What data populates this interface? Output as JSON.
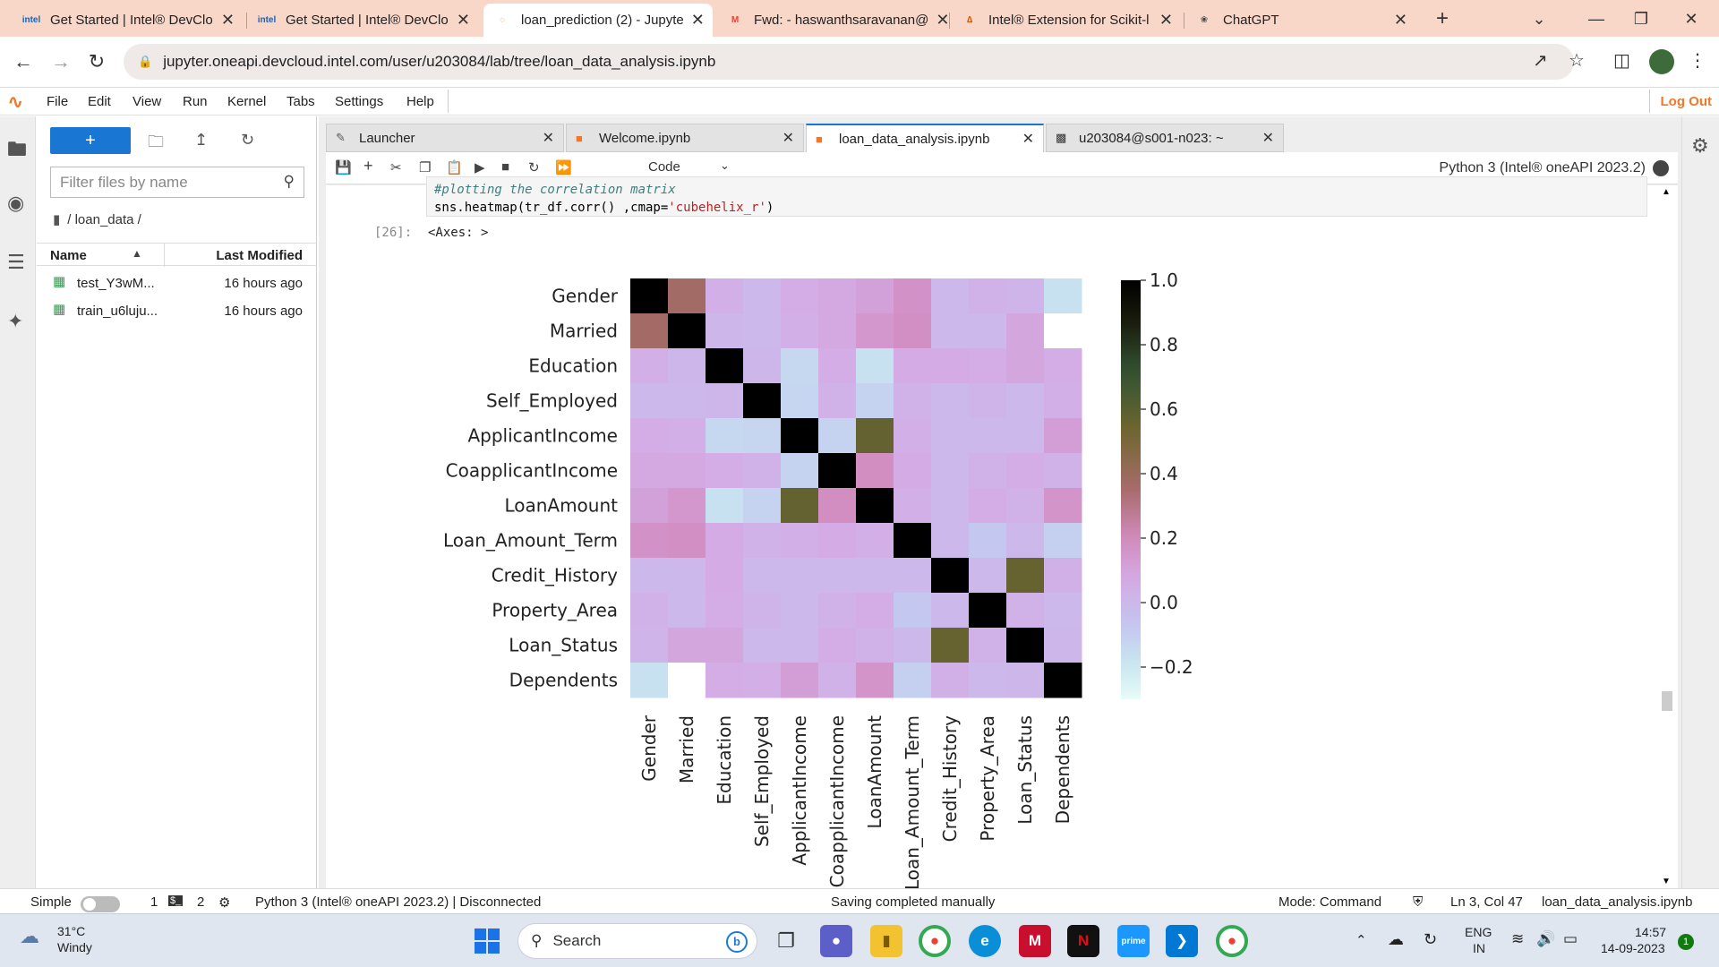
{
  "browser": {
    "tabs": [
      {
        "favicon": "intel",
        "title": "Get Started | Intel® DevClo",
        "active": false
      },
      {
        "favicon": "intel",
        "title": "Get Started | Intel® DevClo",
        "active": false
      },
      {
        "favicon": "jupyter-icon",
        "title": "loan_prediction (2) - Jupyte",
        "active": true
      },
      {
        "favicon": "gmail-icon",
        "title": "Fwd: - haswanthsaravanan@",
        "active": false
      },
      {
        "favicon": "scikit-icon",
        "title": "Intel® Extension for Scikit-l",
        "active": false
      },
      {
        "favicon": "chatgpt-icon",
        "title": "ChatGPT",
        "active": false
      }
    ],
    "new_tab": "+",
    "url": "jupyter.oneapi.devcloud.intel.com/user/u203084/lab/tree/loan_data_analysis.ipynb"
  },
  "jupyter": {
    "menu": [
      "File",
      "Edit",
      "View",
      "Run",
      "Kernel",
      "Tabs",
      "Settings",
      "Help"
    ],
    "logout": "Log Out",
    "filebrowser": {
      "new_label": "+",
      "filter_placeholder": "Filter files by name",
      "breadcrumb": "/ loan_data /",
      "col_name": "Name",
      "col_modified": "Last Modified",
      "files": [
        {
          "name": "test_Y3wM...",
          "modified": "16 hours ago"
        },
        {
          "name": "train_u6luju...",
          "modified": "16 hours ago"
        }
      ]
    },
    "doc_tabs": [
      {
        "title": "Launcher",
        "active": false
      },
      {
        "title": "Welcome.ipynb",
        "active": false
      },
      {
        "title": "loan_data_analysis.ipynb",
        "active": true
      },
      {
        "title": "u203084@s001-n023: ~",
        "active": false
      }
    ],
    "toolbar": {
      "cell_type": "Code",
      "kernel": "Python 3 (Intel® oneAPI 2023.2)"
    },
    "cell": {
      "comment": "#plotting the correlation matrix",
      "code_pre": "sns.heatmap(tr_df.corr() ,cmap=",
      "code_str": "'cubehelix_r'",
      "code_post": ")",
      "out_prompt": "[26]:",
      "out_text": "<Axes: >"
    },
    "status": {
      "mode_label": "Simple",
      "n1": "1",
      "n2": "2",
      "kernel": "Python 3 (Intel® oneAPI 2023.2) | Disconnected",
      "saving": "Saving completed manually",
      "mode": "Mode: Command",
      "position": "Ln 3, Col 47",
      "file": "loan_data_analysis.ipynb"
    }
  },
  "chart_data": {
    "type": "heatmap",
    "colormap": "cubehelix_r",
    "labels": [
      "Gender",
      "Married",
      "Education",
      "Self_Employed",
      "ApplicantIncome",
      "CoapplicantIncome",
      "LoanAmount",
      "Loan_Amount_Term",
      "Credit_History",
      "Property_Area",
      "Loan_Status",
      "Dependents"
    ],
    "matrix": [
      [
        1.0,
        0.37,
        0.05,
        0.0,
        0.06,
        0.08,
        0.11,
        0.17,
        0.0,
        0.03,
        0.02,
        -0.17
      ],
      [
        0.37,
        1.0,
        0.01,
        0.0,
        0.05,
        0.08,
        0.15,
        0.18,
        0.0,
        0.0,
        0.09,
        null
      ],
      [
        0.05,
        0.01,
        1.0,
        0.01,
        -0.14,
        0.06,
        -0.17,
        0.07,
        0.07,
        0.06,
        0.09,
        0.06
      ],
      [
        0.0,
        0.0,
        0.01,
        1.0,
        -0.13,
        0.03,
        -0.12,
        0.03,
        0.0,
        0.02,
        0.0,
        0.05
      ],
      [
        0.06,
        0.05,
        -0.14,
        -0.13,
        1.0,
        -0.12,
        0.57,
        0.05,
        0.0,
        0.0,
        0.0,
        0.12
      ],
      [
        0.08,
        0.08,
        0.06,
        0.03,
        -0.12,
        1.0,
        0.19,
        0.07,
        0.0,
        0.03,
        0.06,
        0.03
      ],
      [
        0.11,
        0.15,
        -0.17,
        -0.12,
        0.57,
        0.19,
        1.0,
        0.05,
        0.0,
        0.06,
        0.03,
        0.16
      ],
      [
        0.17,
        0.18,
        0.07,
        0.03,
        0.05,
        0.07,
        0.05,
        1.0,
        0.0,
        -0.08,
        0.0,
        -0.11
      ],
      [
        0.0,
        0.0,
        0.07,
        0.0,
        0.0,
        0.0,
        0.0,
        0.0,
        1.0,
        0.0,
        0.56,
        0.04
      ],
      [
        0.03,
        0.0,
        0.06,
        0.02,
        0.0,
        0.03,
        0.06,
        -0.08,
        0.0,
        1.0,
        0.03,
        0.0
      ],
      [
        0.02,
        0.09,
        0.09,
        0.0,
        0.0,
        0.06,
        0.03,
        0.0,
        0.56,
        0.03,
        1.0,
        0.01
      ],
      [
        -0.17,
        null,
        0.06,
        0.05,
        0.12,
        0.03,
        0.16,
        -0.11,
        0.04,
        0.0,
        0.01,
        1.0
      ]
    ],
    "colorbar_ticks": [
      1.0,
      0.8,
      0.6,
      0.4,
      0.2,
      0.0,
      -0.2
    ],
    "colorbar_tick_labels": [
      "1.0",
      "0.8",
      "0.6",
      "0.4",
      "0.2",
      "0.0",
      "−0.2"
    ],
    "vmin": -0.3,
    "vmax": 1.0
  },
  "taskbar": {
    "weather_temp": "31°C",
    "weather_desc": "Windy",
    "search_label": "Search",
    "lang1": "ENG",
    "lang2": "IN",
    "time": "14:57",
    "date": "14-09-2023",
    "notif": "1"
  }
}
